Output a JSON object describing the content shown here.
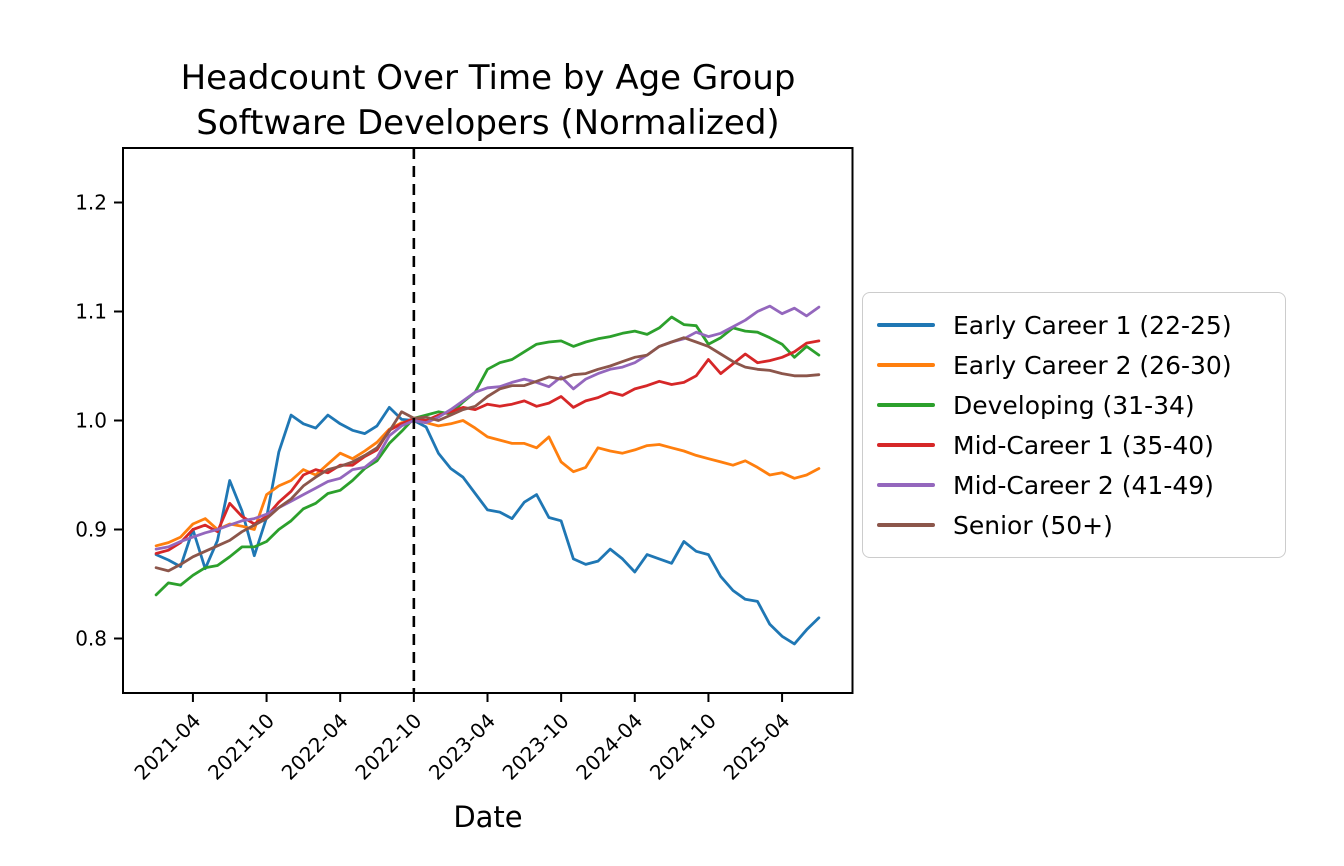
{
  "chart_data": {
    "type": "line",
    "title_line1": "Headcount Over Time by Age Group",
    "title_line2": "Software Developers (Normalized)",
    "xlabel": "Date",
    "x_start": "2021-01",
    "x_end": "2025-07",
    "n_points": 55,
    "x_tick_labels": [
      "2021-04",
      "2021-10",
      "2022-04",
      "2022-10",
      "2023-04",
      "2023-10",
      "2024-04",
      "2024-10",
      "2025-04"
    ],
    "x_tick_indices": [
      3,
      9,
      15,
      21,
      27,
      33,
      39,
      45,
      51
    ],
    "y_tick_labels": [
      "0.8",
      "0.9",
      "1.0",
      "1.1",
      "1.2"
    ],
    "y_ticks": [
      0.8,
      0.9,
      1.0,
      1.1,
      1.2
    ],
    "ylim": [
      0.75,
      1.25
    ],
    "grid": false,
    "legend_position": "right-outside",
    "vline_index": 21,
    "vline_style": "black-dashed",
    "axis_color": "#000000",
    "series": [
      {
        "name": "Early Career 1 (22-25)",
        "color": "#1f77b4",
        "values": [
          0.877,
          0.872,
          0.866,
          0.9,
          0.864,
          0.89,
          0.945,
          0.917,
          0.876,
          0.911,
          0.971,
          1.005,
          0.997,
          0.993,
          1.005,
          0.997,
          0.991,
          0.988,
          0.995,
          1.012,
          1.001,
          1.0,
          0.994,
          0.97,
          0.956,
          0.948,
          0.933,
          0.918,
          0.916,
          0.91,
          0.925,
          0.932,
          0.911,
          0.908,
          0.873,
          0.868,
          0.871,
          0.882,
          0.873,
          0.861,
          0.877,
          0.873,
          0.869,
          0.889,
          0.88,
          0.877,
          0.857,
          0.844,
          0.836,
          0.834,
          0.813,
          0.802,
          0.795,
          0.808,
          0.819
        ]
      },
      {
        "name": "Early Career 2 (26-30)",
        "color": "#ff7f0e",
        "values": [
          0.885,
          0.888,
          0.893,
          0.905,
          0.91,
          0.9,
          0.905,
          0.903,
          0.9,
          0.932,
          0.94,
          0.945,
          0.955,
          0.95,
          0.96,
          0.97,
          0.965,
          0.972,
          0.98,
          0.992,
          0.998,
          1.0,
          0.998,
          0.995,
          0.997,
          1.0,
          0.993,
          0.985,
          0.982,
          0.979,
          0.979,
          0.975,
          0.985,
          0.962,
          0.953,
          0.957,
          0.975,
          0.972,
          0.97,
          0.973,
          0.977,
          0.978,
          0.975,
          0.972,
          0.968,
          0.965,
          0.962,
          0.959,
          0.963,
          0.957,
          0.95,
          0.952,
          0.947,
          0.95,
          0.956
        ]
      },
      {
        "name": "Developing (31-34)",
        "color": "#2ca02c",
        "values": [
          0.84,
          0.851,
          0.849,
          0.858,
          0.865,
          0.867,
          0.875,
          0.884,
          0.884,
          0.889,
          0.9,
          0.908,
          0.919,
          0.924,
          0.933,
          0.936,
          0.945,
          0.956,
          0.963,
          0.979,
          0.99,
          1.002,
          1.005,
          1.008,
          1.006,
          1.017,
          1.026,
          1.047,
          1.053,
          1.056,
          1.063,
          1.07,
          1.072,
          1.073,
          1.068,
          1.072,
          1.075,
          1.077,
          1.08,
          1.082,
          1.079,
          1.085,
          1.095,
          1.088,
          1.087,
          1.07,
          1.076,
          1.085,
          1.082,
          1.081,
          1.076,
          1.07,
          1.058,
          1.068,
          1.06
        ]
      },
      {
        "name": "Mid-Career 1 (35-40)",
        "color": "#d62728",
        "values": [
          0.878,
          0.881,
          0.888,
          0.9,
          0.904,
          0.898,
          0.924,
          0.912,
          0.905,
          0.912,
          0.925,
          0.935,
          0.95,
          0.955,
          0.952,
          0.959,
          0.959,
          0.967,
          0.973,
          0.991,
          0.997,
          1.002,
          1.0,
          1.005,
          1.008,
          1.012,
          1.01,
          1.015,
          1.013,
          1.015,
          1.018,
          1.013,
          1.016,
          1.022,
          1.012,
          1.018,
          1.021,
          1.026,
          1.023,
          1.029,
          1.032,
          1.036,
          1.033,
          1.035,
          1.041,
          1.056,
          1.043,
          1.052,
          1.061,
          1.053,
          1.055,
          1.058,
          1.063,
          1.071,
          1.073
        ]
      },
      {
        "name": "Mid-Career 2 (41-49)",
        "color": "#9467bd",
        "values": [
          0.882,
          0.884,
          0.889,
          0.893,
          0.897,
          0.9,
          0.904,
          0.908,
          0.91,
          0.914,
          0.92,
          0.926,
          0.932,
          0.938,
          0.944,
          0.947,
          0.955,
          0.957,
          0.966,
          0.986,
          0.995,
          1.0,
          0.998,
          1.003,
          1.01,
          1.018,
          1.026,
          1.03,
          1.031,
          1.035,
          1.038,
          1.035,
          1.031,
          1.04,
          1.029,
          1.038,
          1.043,
          1.047,
          1.049,
          1.053,
          1.06,
          1.068,
          1.072,
          1.075,
          1.081,
          1.077,
          1.08,
          1.086,
          1.092,
          1.1,
          1.105,
          1.098,
          1.103,
          1.096,
          1.104
        ]
      },
      {
        "name": "Senior (50+)",
        "color": "#8c564b",
        "values": [
          0.865,
          0.862,
          0.868,
          0.875,
          0.88,
          0.885,
          0.89,
          0.898,
          0.904,
          0.91,
          0.92,
          0.928,
          0.94,
          0.948,
          0.955,
          0.958,
          0.962,
          0.968,
          0.975,
          0.99,
          1.008,
          1.002,
          1.003,
          1.0,
          1.005,
          1.01,
          1.013,
          1.022,
          1.029,
          1.032,
          1.032,
          1.036,
          1.04,
          1.038,
          1.042,
          1.043,
          1.047,
          1.05,
          1.054,
          1.058,
          1.06,
          1.068,
          1.072,
          1.076,
          1.072,
          1.068,
          1.061,
          1.054,
          1.049,
          1.047,
          1.046,
          1.043,
          1.041,
          1.041,
          1.042
        ]
      }
    ]
  }
}
